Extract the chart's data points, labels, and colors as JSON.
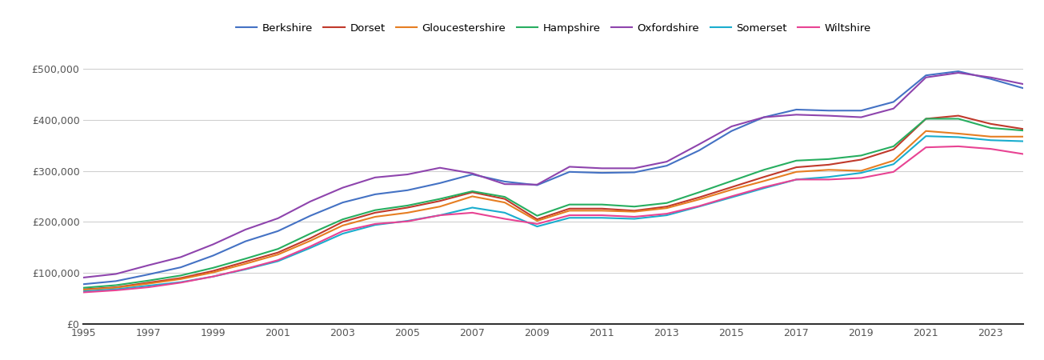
{
  "years": [
    1995,
    1996,
    1997,
    1998,
    1999,
    2000,
    2001,
    2002,
    2003,
    2004,
    2005,
    2006,
    2007,
    2008,
    2009,
    2010,
    2011,
    2012,
    2013,
    2014,
    2015,
    2016,
    2017,
    2018,
    2019,
    2020,
    2021,
    2022,
    2023,
    2024
  ],
  "series": {
    "Berkshire": [
      78000,
      84000,
      97000,
      111000,
      134000,
      162000,
      182000,
      212000,
      238000,
      254000,
      262000,
      276000,
      293000,
      279000,
      272000,
      298000,
      296000,
      297000,
      310000,
      340000,
      378000,
      405000,
      420000,
      418000,
      418000,
      435000,
      487000,
      495000,
      480000,
      462000
    ],
    "Dorset": [
      68000,
      72000,
      81000,
      90000,
      104000,
      122000,
      140000,
      168000,
      200000,
      218000,
      228000,
      241000,
      258000,
      245000,
      205000,
      226000,
      226000,
      222000,
      230000,
      248000,
      268000,
      288000,
      307000,
      312000,
      322000,
      342000,
      402000,
      408000,
      392000,
      382000
    ],
    "Gloucestershire": [
      67000,
      71000,
      79000,
      88000,
      101000,
      118000,
      136000,
      163000,
      193000,
      210000,
      218000,
      230000,
      250000,
      238000,
      202000,
      222000,
      222000,
      220000,
      227000,
      244000,
      263000,
      280000,
      298000,
      302000,
      300000,
      320000,
      378000,
      373000,
      367000,
      367000
    ],
    "Hampshire": [
      71000,
      76000,
      85000,
      95000,
      110000,
      128000,
      147000,
      177000,
      205000,
      223000,
      232000,
      245000,
      260000,
      249000,
      212000,
      234000,
      234000,
      230000,
      237000,
      258000,
      280000,
      302000,
      320000,
      323000,
      330000,
      348000,
      402000,
      402000,
      384000,
      379000
    ],
    "Oxfordshire": [
      91000,
      98000,
      115000,
      131000,
      156000,
      185000,
      207000,
      240000,
      267000,
      287000,
      293000,
      306000,
      295000,
      274000,
      273000,
      308000,
      305000,
      305000,
      318000,
      352000,
      387000,
      405000,
      410000,
      408000,
      405000,
      422000,
      483000,
      492000,
      483000,
      470000
    ],
    "Somerset": [
      64000,
      68000,
      75000,
      82000,
      93000,
      107000,
      123000,
      149000,
      177000,
      194000,
      202000,
      213000,
      228000,
      218000,
      191000,
      208000,
      208000,
      206000,
      213000,
      230000,
      248000,
      266000,
      283000,
      288000,
      296000,
      313000,
      368000,
      366000,
      360000,
      358000
    ],
    "Wiltshire": [
      62000,
      66000,
      72000,
      81000,
      93000,
      108000,
      125000,
      152000,
      182000,
      196000,
      201000,
      213000,
      218000,
      206000,
      196000,
      213000,
      213000,
      210000,
      216000,
      231000,
      250000,
      268000,
      283000,
      283000,
      286000,
      298000,
      346000,
      348000,
      343000,
      333000
    ]
  },
  "colors": {
    "Berkshire": "#4472C4",
    "Dorset": "#C0392B",
    "Gloucestershire": "#E67E22",
    "Hampshire": "#27AE60",
    "Oxfordshire": "#8E44AD",
    "Somerset": "#1AADCE",
    "Wiltshire": "#E84393"
  },
  "xlim": [
    1995,
    2024
  ],
  "ylim": [
    0,
    550000
  ],
  "yticks": [
    0,
    100000,
    200000,
    300000,
    400000,
    500000
  ],
  "xticks": [
    1995,
    1997,
    1999,
    2001,
    2003,
    2005,
    2007,
    2009,
    2011,
    2013,
    2015,
    2017,
    2019,
    2021,
    2023
  ],
  "background_color": "#ffffff",
  "grid_color": "#d0d0d0"
}
